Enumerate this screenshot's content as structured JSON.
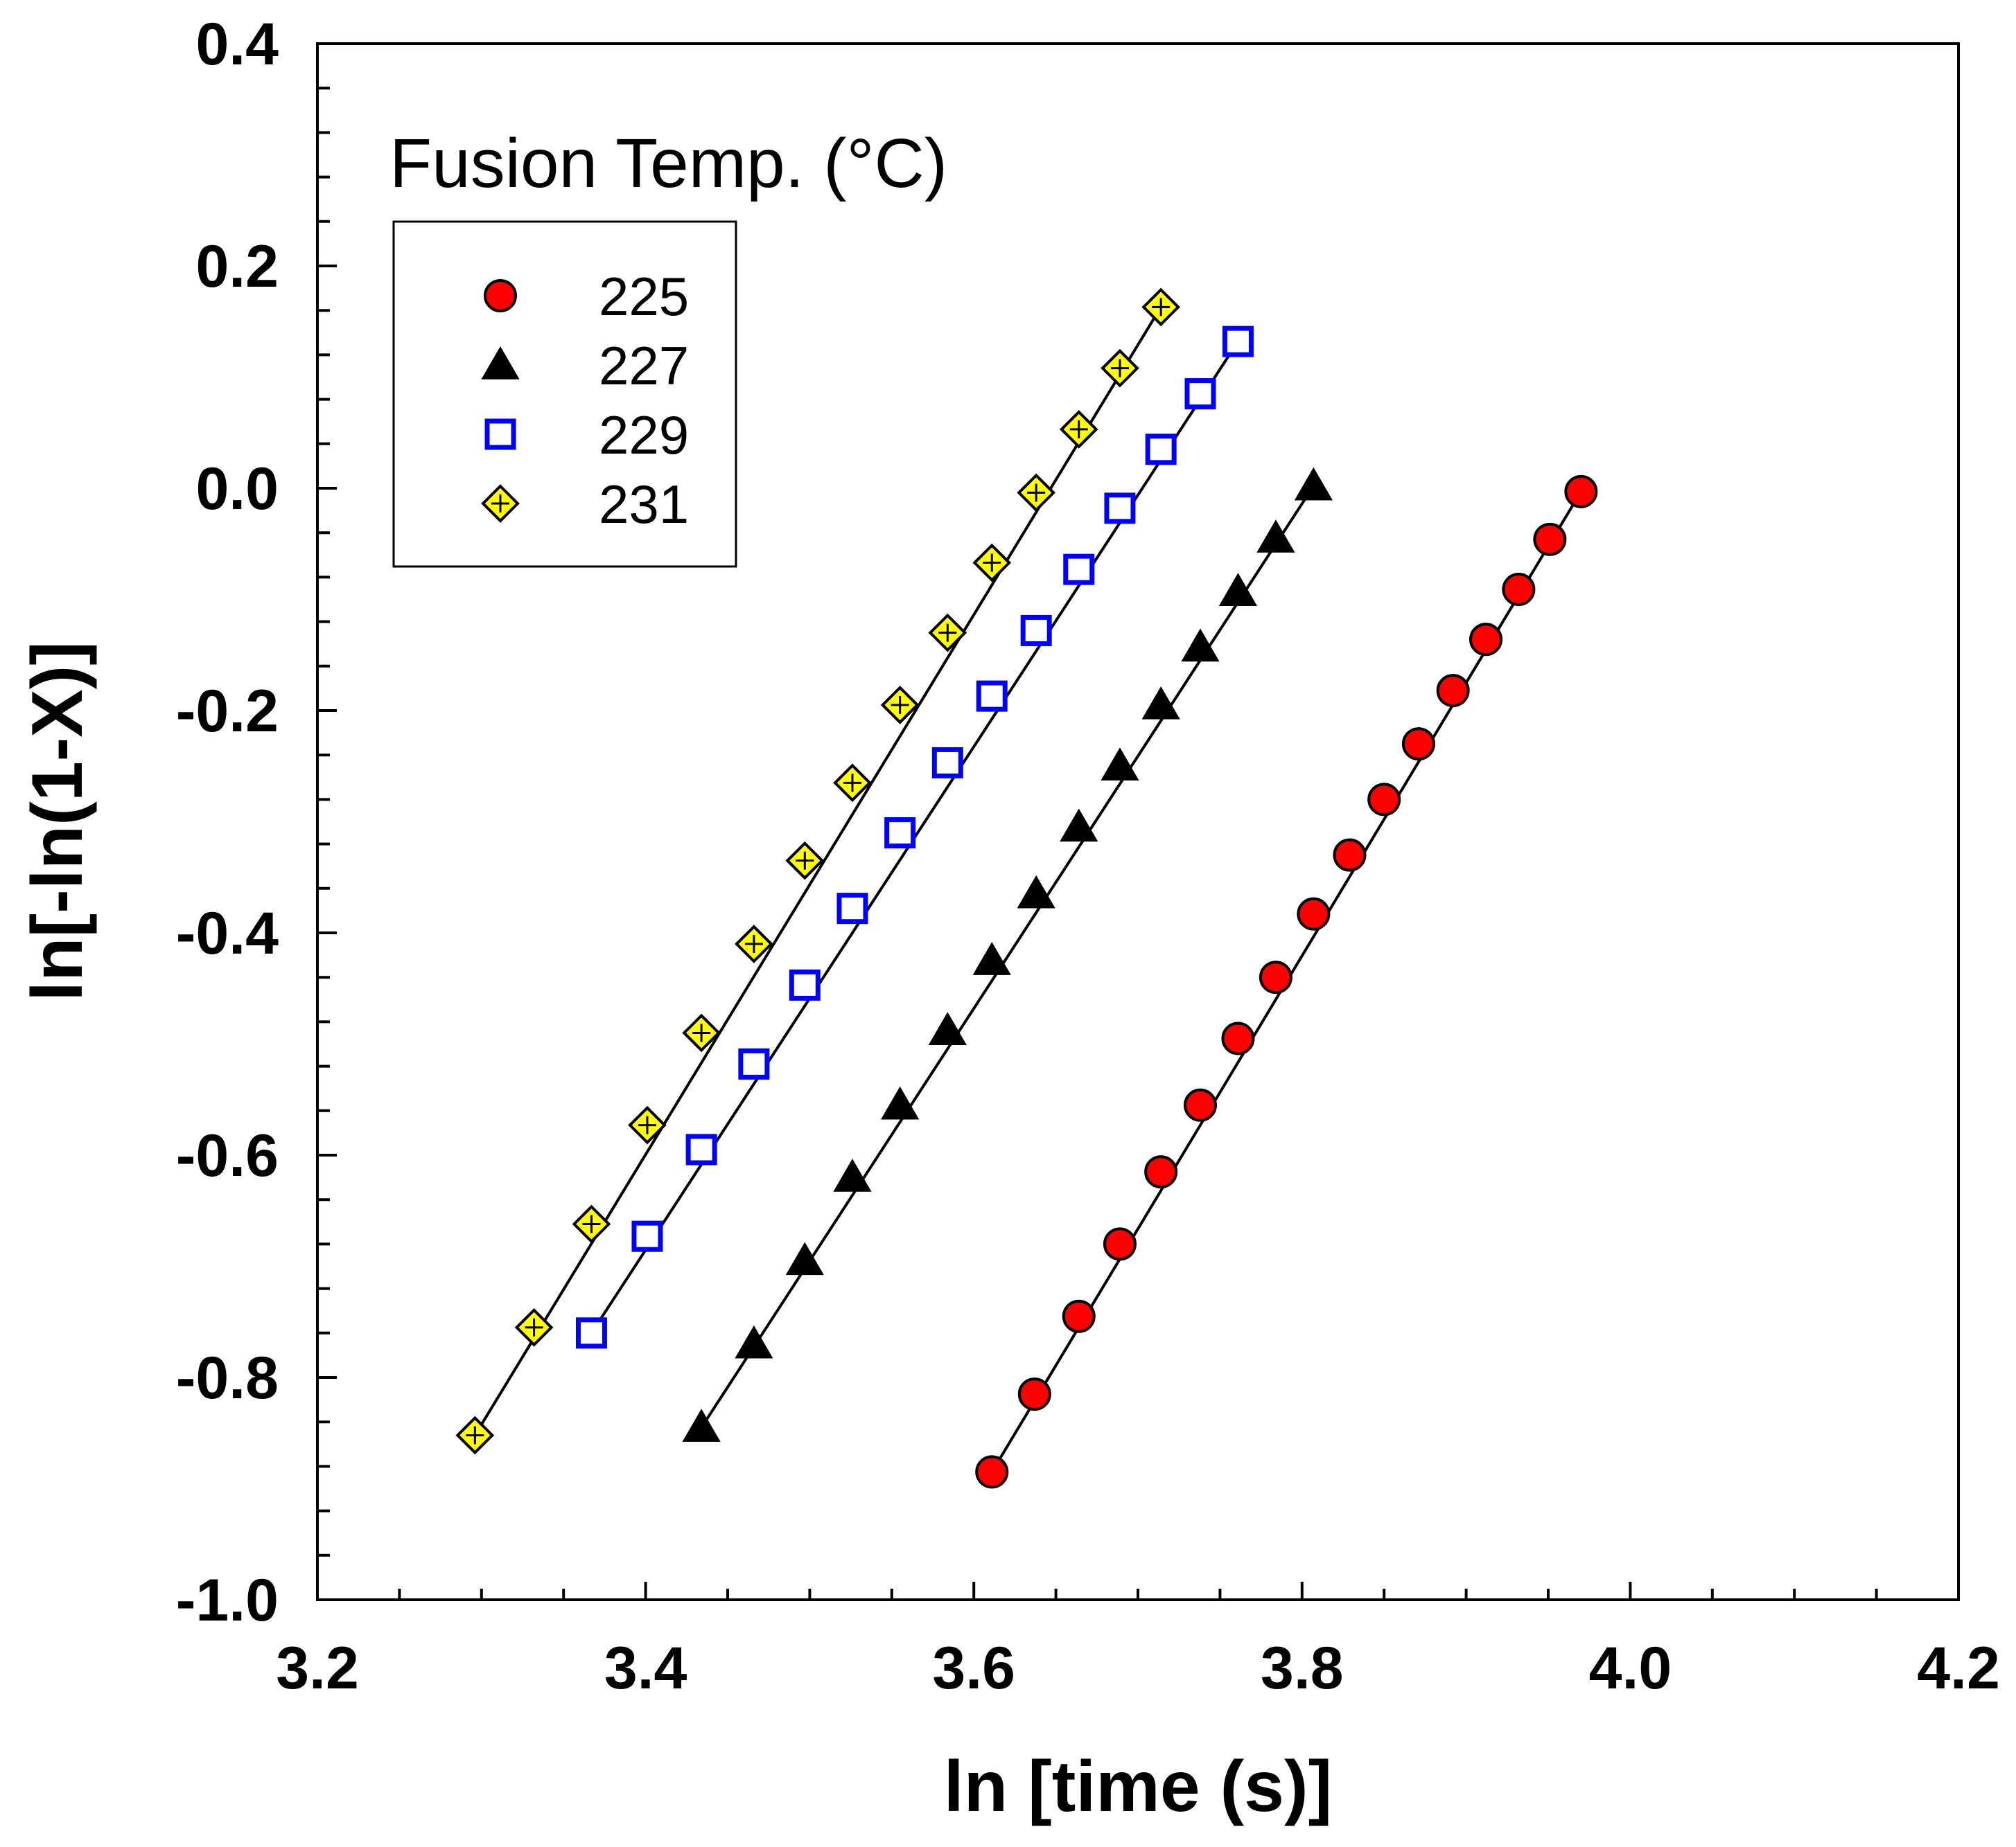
{
  "chart_data": {
    "type": "scatter",
    "title": "",
    "xlabel": "ln [time (s)]",
    "ylabel": "ln[-ln(1-X)]",
    "xlim": [
      3.2,
      4.2
    ],
    "ylim": [
      -1.0,
      0.4
    ],
    "x_ticks": [
      "3.2",
      "3.4",
      "3.6",
      "3.8",
      "4.0",
      "4.2"
    ],
    "y_ticks": [
      "-1.0",
      "-0.8",
      "-0.6",
      "-0.4",
      "-0.2",
      "0.0",
      "0.2",
      "0.4"
    ],
    "legend_title": "Fusion Temp. (°C)",
    "legend_position": "top-left",
    "grid": false,
    "series": [
      {
        "name": "225",
        "marker": "circle",
        "color": "#ff0000",
        "edge": "#000000",
        "x": [
          3.611,
          3.637,
          3.664,
          3.689,
          3.714,
          3.738,
          3.761,
          3.784,
          3.807,
          3.829,
          3.85,
          3.871,
          3.892,
          3.912,
          3.932,
          3.951,
          3.97
        ],
        "y": [
          -0.885,
          -0.815,
          -0.745,
          -0.68,
          -0.615,
          -0.555,
          -0.495,
          -0.44,
          -0.383,
          -0.33,
          -0.28,
          -0.23,
          -0.182,
          -0.136,
          -0.091,
          -0.046,
          -0.003
        ],
        "fit": [
          [
            3.611,
            -0.885
          ],
          [
            3.97,
            -0.003
          ]
        ]
      },
      {
        "name": "227",
        "marker": "triangle",
        "color": "#000000",
        "edge": "#000000",
        "x": [
          3.434,
          3.466,
          3.497,
          3.526,
          3.555,
          3.584,
          3.611,
          3.638,
          3.664,
          3.689,
          3.714,
          3.738,
          3.761,
          3.784,
          3.807
        ],
        "y": [
          -0.845,
          -0.77,
          -0.695,
          -0.62,
          -0.555,
          -0.488,
          -0.425,
          -0.365,
          -0.305,
          -0.25,
          -0.195,
          -0.143,
          -0.093,
          -0.045,
          0.002
        ],
        "fit": [
          [
            3.434,
            -0.845
          ],
          [
            3.807,
            0.002
          ]
        ]
      },
      {
        "name": "229",
        "marker": "square",
        "color": "#ffffff",
        "edge": "#0000ff",
        "x": [
          3.367,
          3.401,
          3.434,
          3.466,
          3.497,
          3.526,
          3.555,
          3.584,
          3.611,
          3.638,
          3.664,
          3.689,
          3.714,
          3.738,
          3.761
        ],
        "y": [
          -0.76,
          -0.673,
          -0.595,
          -0.518,
          -0.447,
          -0.378,
          -0.31,
          -0.247,
          -0.187,
          -0.128,
          -0.073,
          -0.018,
          0.035,
          0.085,
          0.132
        ],
        "fit": [
          [
            3.367,
            -0.76
          ],
          [
            3.761,
            0.132
          ]
        ]
      },
      {
        "name": "231",
        "marker": "diamond-plus",
        "color": "#ffff00",
        "edge": "#000000",
        "x": [
          3.296,
          3.332,
          3.367,
          3.401,
          3.434,
          3.466,
          3.497,
          3.526,
          3.555,
          3.584,
          3.611,
          3.638,
          3.664,
          3.689,
          3.714
        ],
        "y": [
          -0.852,
          -0.755,
          -0.662,
          -0.573,
          -0.49,
          -0.41,
          -0.335,
          -0.265,
          -0.195,
          -0.13,
          -0.067,
          -0.004,
          0.053,
          0.108,
          0.163
        ],
        "fit": [
          [
            3.296,
            -0.852
          ],
          [
            3.714,
            0.163
          ]
        ]
      }
    ]
  }
}
